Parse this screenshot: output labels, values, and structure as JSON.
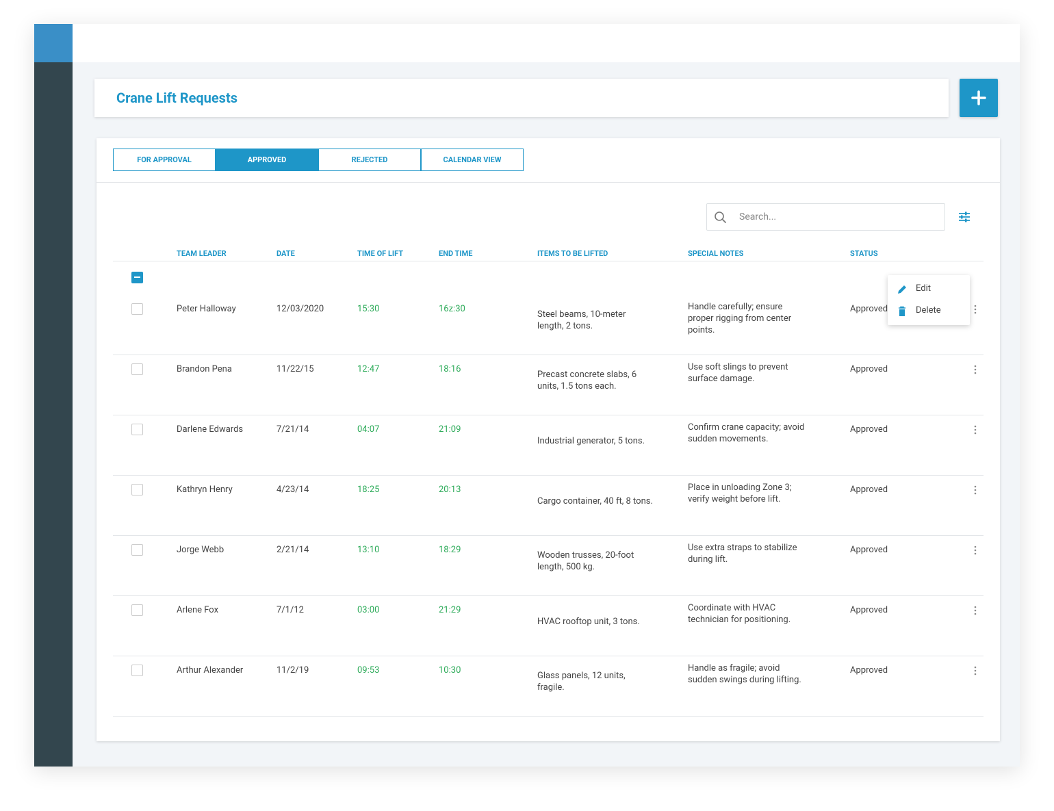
{
  "header": {
    "title": "Crane Lift Requests"
  },
  "tabs": [
    "FOR APPROVAL",
    "APPROVED",
    "REJECTED",
    "CALENDAR VIEW"
  ],
  "active_tab": 1,
  "search": {
    "placeholder": "Search..."
  },
  "table": {
    "columns": [
      "TEAM LEADER",
      "DATE",
      "TIME OF LIFT",
      "END TIME",
      "ITEMS TO BE LIFTED",
      "SPECIAL NOTES",
      "STATUS"
    ],
    "rows": [
      [
        "Peter Halloway",
        "12/03/2020",
        "15:30",
        "16z:30",
        "Steel beams, 10-meter length, 2 tons.",
        "Handle carefully; ensure proper rigging from center points.",
        "Approved"
      ],
      [
        "Brandon Pena",
        "11/22/15",
        "12:47",
        "18:16",
        "Precast concrete slabs, 6 units, 1.5 tons each.",
        "Use soft slings to prevent surface damage.",
        "Approved"
      ],
      [
        "Darlene Edwards",
        "7/21/14",
        "04:07",
        "21:09",
        "Industrial generator, 5 tons.",
        "Confirm crane capacity; avoid sudden movements.",
        "Approved"
      ],
      [
        "Kathryn Henry",
        "4/23/14",
        "18:25",
        "20:13",
        "Cargo container, 40 ft, 8 tons.",
        "Place in unloading Zone 3; verify weight before lift.",
        "Approved"
      ],
      [
        "Jorge Webb",
        "2/21/14",
        "13:10",
        "18:29",
        "Wooden trusses, 20-foot length, 500 kg.",
        "Use extra straps to stabilize during lift.",
        "Approved"
      ],
      [
        "Arlene Fox",
        "7/1/12",
        "03:00",
        "21:29",
        "HVAC rooftop unit, 3 tons.",
        "Coordinate with HVAC technician for positioning.",
        "Approved"
      ],
      [
        "Arthur Alexander",
        "11/2/19",
        "09:53",
        "10:30",
        "Glass panels, 12 units, fragile.",
        "Handle as fragile; avoid sudden swings during lifting.",
        "Approved"
      ]
    ]
  },
  "menu": [
    "Edit",
    "Delete"
  ]
}
